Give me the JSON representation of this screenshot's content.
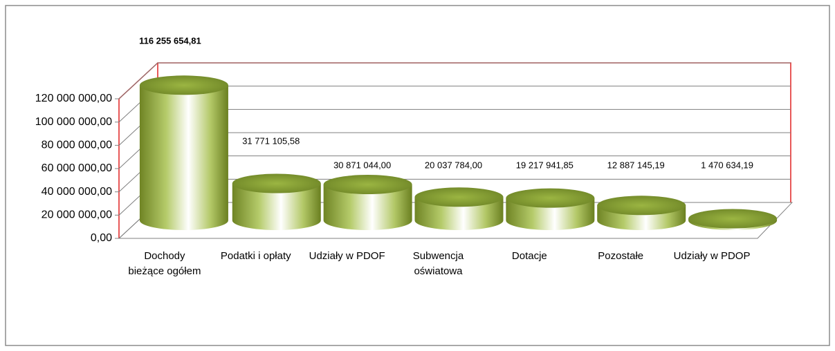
{
  "chart_data": {
    "type": "bar",
    "categories": [
      "Dochody bieżące ogółem",
      "Podatki i opłaty",
      "Udziały w PDOF",
      "Subwencja oświatowa",
      "Dotacje",
      "Pozostałe",
      "Udziały w PDOP"
    ],
    "values": [
      116255654.81,
      31771105.58,
      30871044.0,
      20037784.0,
      19217941.85,
      12887145.19,
      1470634.19
    ],
    "value_labels": [
      "116 255 654,81",
      "31 771 105,58",
      "30 871 044,00",
      "20 037 784,00",
      "19 217 941,85",
      "12 887 145,19",
      "1 470 634,19"
    ],
    "color": "#9bbb3c",
    "ylim": [
      0,
      120000000
    ],
    "yticks": [
      {
        "value": 0,
        "label": "0,00"
      },
      {
        "value": 20000000,
        "label": "20 000 000,00"
      },
      {
        "value": 40000000,
        "label": "40 000 000,00"
      },
      {
        "value": 60000000,
        "label": "60 000 000,00"
      },
      {
        "value": 80000000,
        "label": "80 000 000,00"
      },
      {
        "value": 100000000,
        "label": "100 000 000,00"
      },
      {
        "value": 120000000,
        "label": "120 000 000,00"
      }
    ],
    "grid": true
  }
}
